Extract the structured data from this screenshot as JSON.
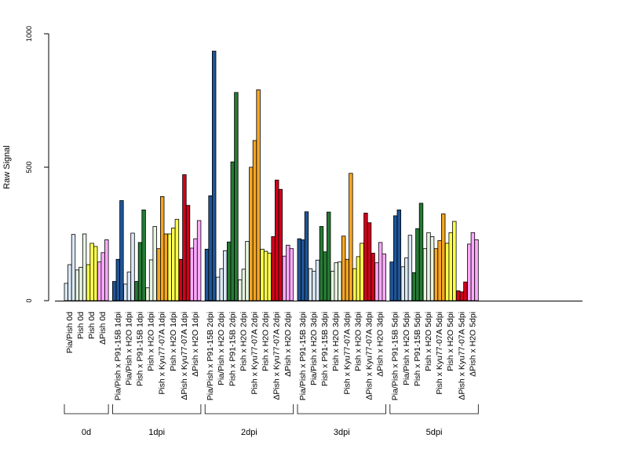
{
  "chart_data": {
    "type": "bar",
    "ylabel": "Raw Signal",
    "ylim": [
      0,
      1000
    ],
    "yticks": [
      0,
      500,
      1000
    ],
    "groups": [
      {
        "label": "0d",
        "categories": [
          {
            "label": "Pia/Pish 0d",
            "color": "#dbe9f6",
            "values": [
              65,
              135,
              248
            ]
          },
          {
            "label": "Pish 0d",
            "color": "#e7f4e0",
            "values": [
              115,
              125,
              250
            ]
          },
          {
            "label": "Pish 0d",
            "color": "#ffff4d",
            "values": [
              135,
              215,
              203
            ]
          },
          {
            "label": "ΔPish 0d",
            "color": "#ffaaff",
            "values": [
              145,
              180,
              228
            ]
          }
        ]
      },
      {
        "label": "1dpi",
        "categories": [
          {
            "label": "Pia/Pish x P91-15B 1dpi",
            "color": "#1f5597",
            "values": [
              72,
              155,
              375
            ]
          },
          {
            "label": "Pia/Pish x H2O 1dpi",
            "color": "#dbe9f6",
            "values": [
              62,
              107,
              253
            ]
          },
          {
            "label": "Pish x P91-15B 1dpi",
            "color": "#267a34",
            "values": [
              72,
              218,
              340
            ]
          },
          {
            "label": "Pish x H2O 1dpi",
            "color": "#e7f4e0",
            "values": [
              48,
              153,
              278
            ]
          },
          {
            "label": "Pish x Kyu77-07A 1dpi",
            "color": "#f5a623",
            "values": [
              195,
              390,
              250
            ]
          },
          {
            "label": "Pish x H2O 1dpi",
            "color": "#ffff4d",
            "values": [
              250,
              272,
              305
            ]
          },
          {
            "label": "ΔPish x Kyu77-07A 1dpi",
            "color": "#d0021b",
            "values": [
              155,
              472,
              357
            ]
          },
          {
            "label": "ΔPish x H2O 1dpi",
            "color": "#ffaaff",
            "values": [
              197,
              232,
              300
            ]
          }
        ]
      },
      {
        "label": "2dpi",
        "categories": [
          {
            "label": "Pia/Pish x P91-15B 2dpi",
            "color": "#1f5597",
            "values": [
              193,
              393,
              935
            ]
          },
          {
            "label": "Pia/Pish x H2O 2dpi",
            "color": "#dbe9f6",
            "values": [
              88,
              120,
              187
            ]
          },
          {
            "label": "Pish x P91-15B 2dpi",
            "color": "#267a34",
            "values": [
              220,
              520,
              780
            ]
          },
          {
            "label": "Pish x H2O 2dpi",
            "color": "#e7f4e0",
            "values": [
              78,
              118,
              222
            ]
          },
          {
            "label": "Pish x Kyu77-07A 2dpi",
            "color": "#f5a623",
            "values": [
              500,
              600,
              790
            ]
          },
          {
            "label": "Pish x H2O 2dpi",
            "color": "#ffff4d",
            "values": [
              193,
              185,
              178
            ]
          },
          {
            "label": "ΔPish x Kyu77-07A 2dpi",
            "color": "#d0021b",
            "values": [
              240,
              452,
              417
            ]
          },
          {
            "label": "ΔPish x H2O 2dpi",
            "color": "#ffaaff",
            "values": [
              167,
              208,
              195
            ]
          }
        ]
      },
      {
        "label": "3dpi",
        "categories": [
          {
            "label": "Pia/Pish x P91-15B 3dpi",
            "color": "#1f5597",
            "values": [
              232,
              228,
              333
            ]
          },
          {
            "label": "Pia/Pish x H2O 3dpi",
            "color": "#dbe9f6",
            "values": [
              120,
              110,
              152
            ]
          },
          {
            "label": "Pish x P91-15B 3dpi",
            "color": "#267a34",
            "values": [
              278,
              183,
              332
            ]
          },
          {
            "label": "Pish x H2O 3dpi",
            "color": "#e7f4e0",
            "values": [
              110,
              142,
              145
            ]
          },
          {
            "label": "Pish x Kyu77-07A 3dpi",
            "color": "#f5a623",
            "values": [
              242,
              155,
              477
            ]
          },
          {
            "label": "Pish x H2O 3dpi",
            "color": "#ffff4d",
            "values": [
              120,
              165,
              215
            ]
          },
          {
            "label": "ΔPish x Kyu77-07A 3dpi",
            "color": "#d0021b",
            "values": [
              328,
              292,
              178
            ]
          },
          {
            "label": "ΔPish x H2O 3dpi",
            "color": "#ffaaff",
            "values": [
              142,
              218,
              175
            ]
          }
        ]
      },
      {
        "label": "5dpi",
        "categories": [
          {
            "label": "Pia/Pish x P91-15B 5dpi",
            "color": "#1f5597",
            "values": [
              145,
              318,
              340
            ]
          },
          {
            "label": "Pia/Pish x H2O 5dpi",
            "color": "#dbe9f6",
            "values": [
              127,
              160,
              245
            ]
          },
          {
            "label": "Pish x P91-15B 5dpi",
            "color": "#267a34",
            "values": [
              105,
              270,
              365
            ]
          },
          {
            "label": "Pish x H2O 5dpi",
            "color": "#e7f4e0",
            "values": [
              195,
              255,
              240
            ]
          },
          {
            "label": "Pish x Kyu77-07A 5dpi",
            "color": "#f5a623",
            "values": [
              195,
              225,
              325
            ]
          },
          {
            "label": "Pish x H2O 5dpi",
            "color": "#ffff4d",
            "values": [
              215,
              255,
              297
            ]
          },
          {
            "label": "ΔPish x Kyu77-07A 5dpi",
            "color": "#d0021b",
            "values": [
              37,
              33,
              70
            ]
          },
          {
            "label": "ΔPish x H2O 5dpi",
            "color": "#ffaaff",
            "values": [
              212,
              255,
              228
            ]
          }
        ]
      }
    ]
  }
}
